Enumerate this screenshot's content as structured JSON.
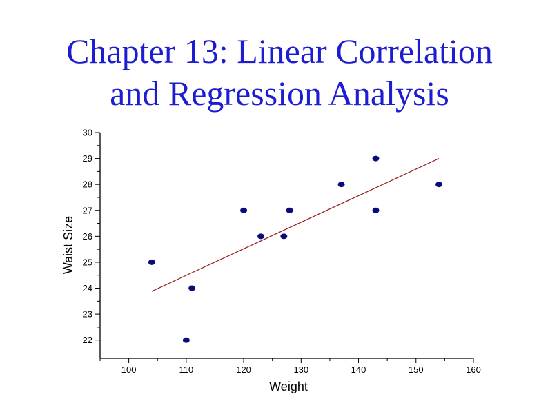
{
  "slide": {
    "title_line1": "Chapter 13: Linear Correlation",
    "title_line2": "and Regression Analysis"
  },
  "chart_data": {
    "type": "scatter",
    "xlabel": "Weight",
    "ylabel": "Waist Size",
    "xlim": [
      95,
      160
    ],
    "ylim": [
      21.3,
      30
    ],
    "x_ticks": [
      100,
      110,
      120,
      130,
      140,
      150,
      160
    ],
    "y_ticks": [
      22,
      23,
      24,
      25,
      26,
      27,
      28,
      29,
      30
    ],
    "grid": false,
    "points": [
      {
        "x": 104,
        "y": 25
      },
      {
        "x": 110,
        "y": 22
      },
      {
        "x": 111,
        "y": 24
      },
      {
        "x": 120,
        "y": 27
      },
      {
        "x": 123,
        "y": 26
      },
      {
        "x": 127,
        "y": 26
      },
      {
        "x": 128,
        "y": 27
      },
      {
        "x": 137,
        "y": 28
      },
      {
        "x": 143,
        "y": 29
      },
      {
        "x": 143,
        "y": 27
      },
      {
        "x": 154,
        "y": 28
      }
    ],
    "regression_line": {
      "x": [
        104,
        154
      ],
      "y": [
        23.88,
        29.0
      ]
    },
    "colors": {
      "points": "#0a0a7a",
      "line": "#9a1a1a",
      "axes": "#000000",
      "title": "#1c1cd0"
    }
  }
}
